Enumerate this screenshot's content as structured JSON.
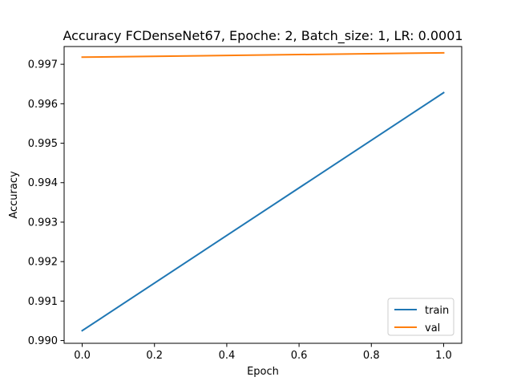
{
  "chart_data": {
    "type": "line",
    "title": "Accuracy FCDenseNet67, Epoche: 2, Batch_size: 1, LR: 0.0001",
    "xlabel": "Epoch",
    "ylabel": "Accuracy",
    "xlim": [
      -0.05,
      1.05
    ],
    "ylim": [
      0.98993,
      0.99745
    ],
    "xticks": [
      0.0,
      0.2,
      0.4,
      0.6,
      0.8,
      1.0
    ],
    "xtick_labels": [
      "0.0",
      "0.2",
      "0.4",
      "0.6",
      "0.8",
      "1.0"
    ],
    "yticks": [
      0.99,
      0.991,
      0.992,
      0.993,
      0.994,
      0.995,
      0.996,
      0.997
    ],
    "ytick_labels": [
      "0.990",
      "0.991",
      "0.992",
      "0.993",
      "0.994",
      "0.995",
      "0.996",
      "0.997"
    ],
    "grid": false,
    "legend_position": "lower right",
    "series": [
      {
        "name": "train",
        "color": "#1f77b4",
        "x": [
          0,
          1
        ],
        "y": [
          0.99025,
          0.99628
        ]
      },
      {
        "name": "val",
        "color": "#ff7f0e",
        "x": [
          0,
          1
        ],
        "y": [
          0.99718,
          0.99729
        ]
      }
    ]
  }
}
